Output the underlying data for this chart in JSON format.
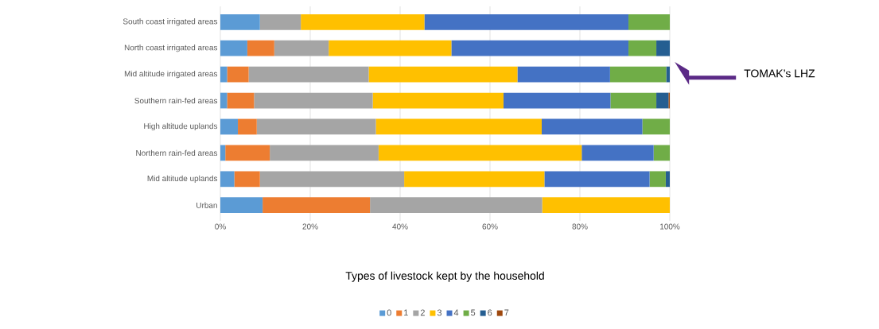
{
  "chart_data": {
    "type": "bar",
    "orientation": "horizontal",
    "stacked": true,
    "categories": [
      "South coast irrigated areas",
      "North coast irrigated areas",
      "Mid altitude irrigated areas",
      "Southern rain-fed areas",
      "High altitude uplands",
      "Northern rain-fed areas",
      "Mid altitude uplands",
      "Urban"
    ],
    "series": [
      {
        "name": "0",
        "color": "#5b9bd5",
        "values": [
          8.8,
          6.0,
          1.5,
          1.5,
          3.9,
          1.1,
          3.1,
          9.4
        ]
      },
      {
        "name": "1",
        "color": "#ed7d31",
        "values": [
          0,
          6.0,
          4.8,
          6.0,
          4.2,
          9.9,
          5.7,
          23.9
        ]
      },
      {
        "name": "2",
        "color": "#a5a5a5",
        "values": [
          9.1,
          12.1,
          26.7,
          26.4,
          26.5,
          24.2,
          32.1,
          38.3
        ]
      },
      {
        "name": "3",
        "color": "#ffc000",
        "values": [
          27.5,
          27.3,
          33.1,
          29.1,
          36.9,
          45.2,
          31.2,
          28.4
        ]
      },
      {
        "name": "4",
        "color": "#4472c4",
        "values": [
          45.4,
          39.4,
          20.6,
          23.8,
          22.4,
          16.0,
          23.4,
          0
        ]
      },
      {
        "name": "5",
        "color": "#70ad47",
        "values": [
          9.2,
          6.2,
          12.5,
          10.2,
          6.1,
          3.6,
          3.6,
          0
        ]
      },
      {
        "name": "6",
        "color": "#255e91",
        "values": [
          0,
          3.0,
          0.8,
          2.7,
          0,
          0,
          0.9,
          0
        ]
      },
      {
        "name": "7",
        "color": "#9e480e",
        "values": [
          0,
          0,
          0,
          0.3,
          0,
          0,
          0,
          0
        ]
      }
    ],
    "xlim": [
      0,
      100
    ],
    "xticks": [
      {
        "value": 0,
        "label": "0%"
      },
      {
        "value": 20,
        "label": "20%"
      },
      {
        "value": 40,
        "label": "40%"
      },
      {
        "value": 60,
        "label": "60%"
      },
      {
        "value": 80,
        "label": "80%"
      },
      {
        "value": 100,
        "label": "100%"
      }
    ],
    "xlabel": "Types of livestock kept by the household",
    "grid": "x",
    "legend": "bottom",
    "annotations": [
      "TOMAK’s LHZ"
    ]
  }
}
